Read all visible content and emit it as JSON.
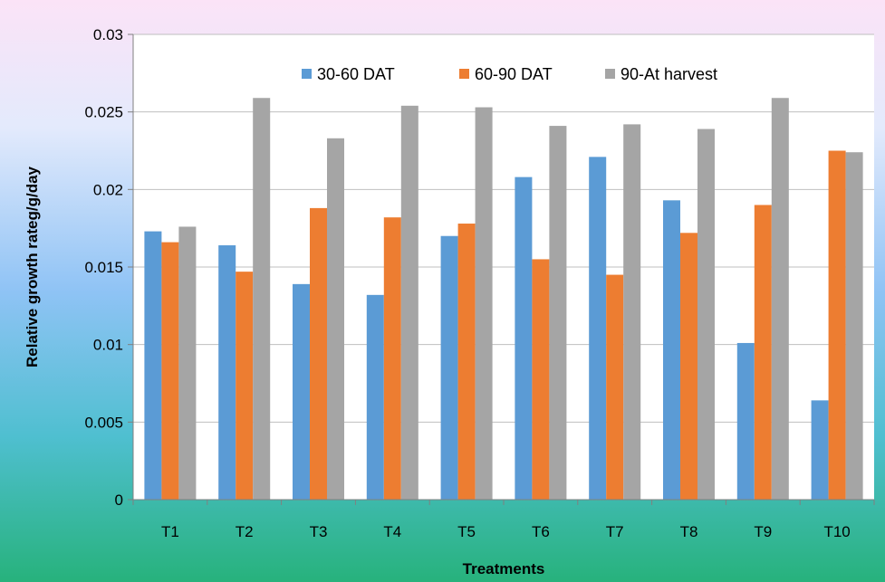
{
  "chart_data": {
    "type": "bar",
    "xlabel": "Treatments",
    "ylabel": "Relative growth rateg/g/day",
    "ylim": [
      0,
      0.03
    ],
    "yticks": [
      "0",
      "0.005",
      "0.01",
      "0.015",
      "0.02",
      "0.025",
      "0.03"
    ],
    "grid": true,
    "legend_position": "top",
    "categories": [
      "T1",
      "T2",
      "T3",
      "T4",
      "T5",
      "T6",
      "T7",
      "T8",
      "T9",
      "T10"
    ],
    "series": [
      {
        "name": "30-60 DAT",
        "color": "#5B9BD5",
        "values": [
          0.0173,
          0.0164,
          0.0139,
          0.0132,
          0.017,
          0.0208,
          0.0221,
          0.0193,
          0.0101,
          0.0064
        ]
      },
      {
        "name": "60-90 DAT",
        "color": "#ED7D31",
        "values": [
          0.0166,
          0.0147,
          0.0188,
          0.0182,
          0.0178,
          0.0155,
          0.0145,
          0.0172,
          0.019,
          0.0225
        ]
      },
      {
        "name": "90-At harvest",
        "color": "#A5A5A5",
        "values": [
          0.0176,
          0.0259,
          0.0233,
          0.0254,
          0.0253,
          0.0241,
          0.0242,
          0.0239,
          0.0259,
          0.0224
        ]
      }
    ]
  }
}
